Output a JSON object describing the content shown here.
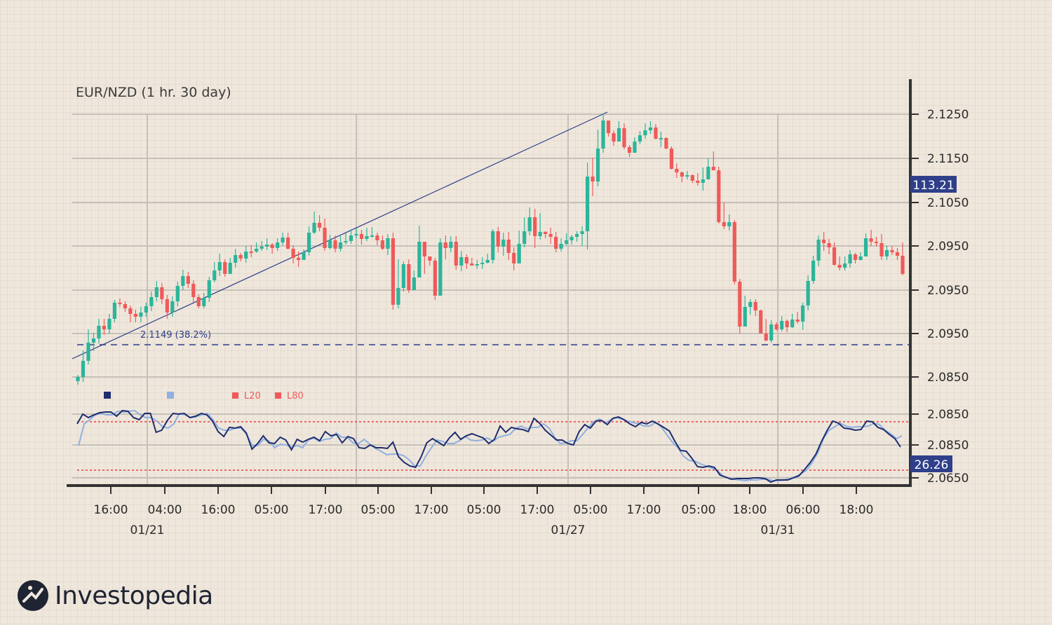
{
  "logo": {
    "text": "Investopedia",
    "icon": "investopedia-logo-icon"
  },
  "colors": {
    "up": "#2bb59a",
    "down": "#ef5a5a",
    "stoch_k": "#1f2d6e",
    "stoch_d": "#8fb0e0",
    "trend": "#2f3f8a",
    "fib": "#2f3f8a",
    "badge": "#2f3f8a",
    "level": "#e84040",
    "grid": "#c6c1ba",
    "axis": "#333333"
  },
  "chart_data": {
    "type": "candlestick",
    "title": "EUR/NZD (1 hr.  30 day)",
    "y_tick_labels": [
      "2.1250",
      "2.1150",
      "2.1050",
      "2.0950",
      "2.0950",
      "2.0950",
      "2.0850",
      "2.0850",
      "2.0850",
      "2.0650"
    ],
    "x_tick_labels": [
      "16:00",
      "04:00",
      "16:00",
      "05:00",
      "17:00",
      "05:00",
      "17:00",
      "05:00",
      "17:00",
      "05:00",
      "17:00",
      "05:00",
      "18:00",
      "06:00",
      "18:00"
    ],
    "date_labels": [
      "01/21",
      "01/27",
      "01/31"
    ],
    "price_badge": "113.21",
    "stoch_badge": "26.26",
    "fib_label": "2.1149 (38.2%)",
    "legend": [
      "L20",
      "L80"
    ],
    "grid": true,
    "candles": [
      [
        544,
        538,
        549,
        535
      ],
      [
        538,
        515,
        545,
        500
      ],
      [
        515,
        489,
        520,
        470
      ],
      [
        489,
        483,
        501,
        475
      ],
      [
        483,
        465,
        490,
        455
      ],
      [
        465,
        470,
        478,
        455
      ],
      [
        470,
        455,
        476,
        448
      ],
      [
        455,
        432,
        460,
        428
      ],
      [
        432,
        434,
        438,
        426
      ],
      [
        434,
        440,
        445,
        430
      ],
      [
        440,
        448,
        460,
        436
      ],
      [
        448,
        452,
        460,
        442
      ],
      [
        452,
        446,
        460,
        438
      ],
      [
        446,
        437,
        452,
        432
      ],
      [
        437,
        424,
        444,
        416
      ],
      [
        424,
        410,
        430,
        401
      ],
      [
        410,
        427,
        434,
        404
      ],
      [
        427,
        446,
        455,
        421
      ],
      [
        446,
        430,
        452,
        423
      ],
      [
        430,
        408,
        437,
        402
      ],
      [
        408,
        394,
        414,
        385
      ],
      [
        394,
        405,
        411,
        388
      ],
      [
        405,
        424,
        432,
        400
      ],
      [
        424,
        437,
        440,
        420
      ],
      [
        437,
        425,
        440,
        418
      ],
      [
        425,
        400,
        431,
        395
      ],
      [
        400,
        386,
        403,
        374
      ],
      [
        386,
        374,
        394,
        362
      ],
      [
        374,
        391,
        395,
        370
      ],
      [
        391,
        375,
        386,
        368
      ],
      [
        375,
        364,
        382,
        355
      ],
      [
        364,
        369,
        373,
        361
      ],
      [
        369,
        359,
        375,
        351
      ],
      [
        359,
        359,
        367,
        350
      ],
      [
        359,
        355,
        361,
        346
      ],
      [
        355,
        352,
        358,
        344
      ],
      [
        352,
        349,
        357,
        340
      ],
      [
        349,
        354,
        362,
        347
      ],
      [
        354,
        346,
        358,
        340
      ],
      [
        346,
        339,
        350,
        332
      ],
      [
        339,
        355,
        356,
        332
      ],
      [
        355,
        368,
        376,
        350
      ],
      [
        368,
        371,
        381,
        359
      ],
      [
        371,
        360,
        367,
        356
      ],
      [
        360,
        332,
        365,
        323
      ],
      [
        332,
        318,
        334,
        302
      ],
      [
        318,
        325,
        330,
        307
      ],
      [
        325,
        354,
        358,
        312
      ],
      [
        354,
        343,
        356,
        335
      ],
      [
        343,
        355,
        360,
        336
      ],
      [
        355,
        346,
        359,
        337
      ],
      [
        346,
        344,
        349,
        333
      ],
      [
        344,
        336,
        348,
        327
      ],
      [
        336,
        334,
        340,
        326
      ],
      [
        334,
        341,
        349,
        328
      ],
      [
        341,
        337,
        344,
        325
      ],
      [
        337,
        336,
        339,
        324
      ],
      [
        336,
        343,
        350,
        332
      ],
      [
        343,
        355,
        357,
        336
      ],
      [
        355,
        340,
        364,
        334
      ],
      [
        340,
        435,
        442,
        332
      ],
      [
        435,
        411,
        440,
        370
      ],
      [
        411,
        377,
        416,
        373
      ],
      [
        377,
        414,
        418,
        370
      ],
      [
        414,
        396,
        412,
        386
      ],
      [
        396,
        345,
        396,
        322
      ],
      [
        345,
        366,
        391,
        356
      ],
      [
        366,
        372,
        379,
        366
      ],
      [
        372,
        422,
        428,
        368
      ],
      [
        422,
        346,
        374,
        340
      ],
      [
        346,
        354,
        370,
        336
      ],
      [
        354,
        345,
        360,
        337
      ],
      [
        345,
        379,
        385,
        337
      ],
      [
        379,
        367,
        387,
        358
      ],
      [
        367,
        376,
        384,
        363
      ],
      [
        376,
        379,
        378,
        368
      ],
      [
        379,
        377,
        384,
        371
      ],
      [
        377,
        375,
        384,
        367
      ],
      [
        375,
        371,
        376,
        362
      ],
      [
        371,
        330,
        376,
        327
      ],
      [
        330,
        352,
        360,
        324
      ],
      [
        352,
        342,
        365,
        332
      ],
      [
        342,
        361,
        371,
        331
      ],
      [
        361,
        376,
        386,
        353
      ],
      [
        376,
        348,
        364,
        329
      ],
      [
        348,
        330,
        353,
        310
      ],
      [
        330,
        310,
        336,
        296
      ],
      [
        310,
        337,
        354,
        298
      ],
      [
        337,
        331,
        342,
        304
      ],
      [
        331,
        334,
        340,
        330
      ],
      [
        334,
        338,
        348,
        325
      ],
      [
        338,
        355,
        360,
        331
      ],
      [
        355,
        348,
        359,
        340
      ],
      [
        348,
        343,
        350,
        333
      ],
      [
        343,
        338,
        349,
        335
      ],
      [
        338,
        334,
        345,
        330
      ],
      [
        334,
        330,
        351,
        323
      ],
      [
        330,
        252,
        356,
        232
      ],
      [
        252,
        259,
        280,
        225
      ],
      [
        259,
        212,
        266,
        185
      ],
      [
        212,
        172,
        218,
        162
      ],
      [
        172,
        190,
        195,
        175
      ],
      [
        190,
        202,
        208,
        186
      ],
      [
        202,
        183,
        195,
        173
      ],
      [
        183,
        210,
        213,
        176
      ],
      [
        210,
        218,
        224,
        207
      ],
      [
        218,
        202,
        215,
        196
      ],
      [
        202,
        193,
        206,
        187
      ],
      [
        193,
        186,
        198,
        176
      ],
      [
        186,
        182,
        191,
        173
      ],
      [
        182,
        198,
        199,
        177
      ],
      [
        198,
        197,
        210,
        188
      ],
      [
        197,
        212,
        213,
        196
      ],
      [
        212,
        241,
        242,
        209
      ],
      [
        241,
        246,
        254,
        233
      ],
      [
        246,
        252,
        260,
        245
      ],
      [
        252,
        250,
        256,
        244
      ],
      [
        250,
        258,
        261,
        249
      ],
      [
        258,
        261,
        265,
        247
      ],
      [
        261,
        256,
        272,
        239
      ],
      [
        256,
        238,
        250,
        226
      ],
      [
        238,
        243,
        239,
        216
      ],
      [
        243,
        317,
        319,
        238
      ],
      [
        317,
        323,
        327,
        289
      ],
      [
        323,
        317,
        329,
        306
      ],
      [
        317,
        402,
        406,
        314
      ],
      [
        402,
        466,
        476,
        398
      ],
      [
        466,
        438,
        465,
        422
      ],
      [
        438,
        431,
        449,
        427
      ],
      [
        431,
        443,
        451,
        427
      ],
      [
        443,
        476,
        472,
        442
      ],
      [
        476,
        486,
        487,
        455
      ],
      [
        486,
        463,
        489,
        457
      ],
      [
        463,
        470,
        472,
        460
      ],
      [
        470,
        458,
        473,
        451
      ],
      [
        458,
        467,
        474,
        456
      ],
      [
        467,
        456,
        468,
        448
      ],
      [
        456,
        459,
        462,
        445
      ],
      [
        459,
        436,
        471,
        432
      ],
      [
        436,
        401,
        443,
        393
      ],
      [
        401,
        372,
        405,
        365
      ],
      [
        372,
        342,
        380,
        336
      ],
      [
        342,
        347,
        358,
        331
      ],
      [
        347,
        353,
        363,
        341
      ],
      [
        353,
        378,
        379,
        346
      ],
      [
        378,
        382,
        386,
        366
      ],
      [
        382,
        376,
        386,
        366
      ],
      [
        376,
        363,
        382,
        357
      ],
      [
        363,
        371,
        376,
        361
      ],
      [
        371,
        366,
        372,
        360
      ],
      [
        366,
        340,
        365,
        333
      ],
      [
        340,
        345,
        351,
        328
      ],
      [
        345,
        347,
        352,
        338
      ],
      [
        347,
        366,
        371,
        334
      ],
      [
        366,
        357,
        371,
        351
      ],
      [
        357,
        360,
        364,
        351
      ],
      [
        360,
        365,
        371,
        354
      ],
      [
        365,
        391,
        393,
        346
      ]
    ],
    "stochastic_k": [
      605,
      591,
      596,
      592,
      589,
      588,
      588,
      594,
      586,
      587,
      596,
      599,
      590,
      590,
      617,
      614,
      600,
      590,
      591,
      590,
      596,
      594,
      590,
      592,
      601,
      616,
      623,
      610,
      611,
      609,
      618,
      641,
      633,
      622,
      632,
      633,
      624,
      628,
      642,
      627,
      631,
      627,
      624,
      629,
      616,
      622,
      620,
      632,
      623,
      626,
      639,
      640,
      635,
      639,
      639,
      640,
      631,
      652,
      660,
      665,
      667,
      652,
      632,
      626,
      631,
      636,
      625,
      617,
      627,
      622,
      619,
      622,
      625,
      633,
      627,
      608,
      617,
      610,
      612,
      613,
      616,
      597,
      604,
      614,
      621,
      628,
      628,
      633,
      635,
      616,
      606,
      611,
      601,
      600,
      606,
      597,
      595,
      599,
      605,
      609,
      603,
      605,
      601,
      605,
      610,
      615,
      630,
      643,
      644,
      654,
      666,
      667,
      665,
      667,
      678,
      681,
      684,
      683,
      683,
      683,
      682,
      682,
      683,
      688,
      685,
      685,
      685,
      682,
      679,
      670,
      660,
      648,
      630,
      614,
      601,
      604,
      611,
      612,
      614,
      613,
      601,
      602,
      610,
      613,
      620,
      626,
      638
    ],
    "stochastic_d": [
      636,
      605,
      599,
      592,
      590,
      592,
      592,
      587,
      588,
      587,
      586,
      592,
      596,
      596,
      601,
      609,
      611,
      605,
      590,
      592,
      596,
      595,
      592,
      590,
      599,
      611,
      614,
      614,
      611,
      611,
      620,
      636,
      636,
      627,
      629,
      639,
      634,
      635,
      638,
      636,
      639,
      628,
      625,
      630,
      627,
      626,
      618,
      624,
      624,
      632,
      633,
      627,
      634,
      640,
      644,
      649,
      648,
      648,
      650,
      656,
      665,
      665,
      651,
      639,
      628,
      630,
      633,
      633,
      629,
      623,
      628,
      629,
      628,
      625,
      630,
      624,
      622,
      620,
      612,
      608,
      612,
      610,
      610,
      605,
      611,
      624,
      633,
      632,
      629,
      629,
      620,
      610,
      602,
      598,
      604,
      599,
      596,
      598,
      601,
      603,
      605,
      608,
      608,
      603,
      609,
      620,
      631,
      639,
      651,
      657,
      658,
      662,
      665,
      668,
      671,
      679,
      682,
      684,
      685,
      686,
      685,
      685,
      684,
      684,
      686,
      686,
      685,
      683,
      680,
      676,
      671,
      660,
      646,
      626,
      614,
      609,
      604,
      608,
      610,
      609,
      609,
      608,
      604,
      606,
      614,
      619,
      626,
      622
    ],
    "overbought_level": "L20",
    "oversold_level": "L80"
  }
}
